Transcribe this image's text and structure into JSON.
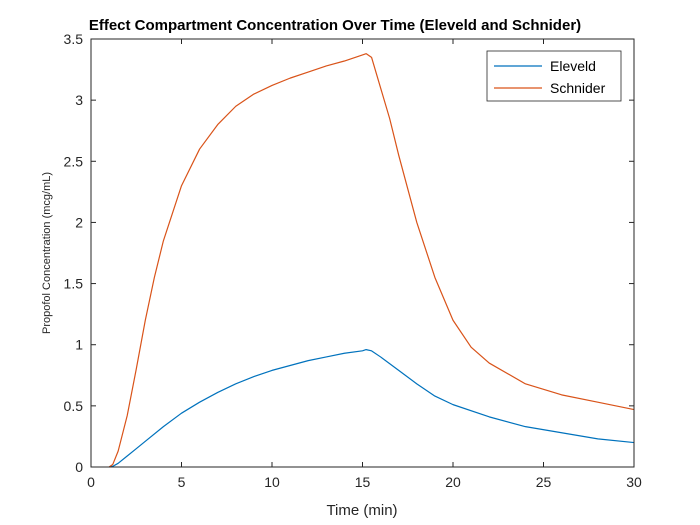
{
  "chart_data": {
    "type": "line",
    "title": "Effect Compartment Concentration Over Time (Eleveld and Schnider)",
    "xlabel": "Time (min)",
    "ylabel": "Propofol Concentration (mcg/mL)",
    "xlim": [
      0,
      30
    ],
    "ylim": [
      0,
      3.5
    ],
    "xticks": [
      0,
      5,
      10,
      15,
      20,
      25,
      30
    ],
    "yticks": [
      0,
      0.5,
      1,
      1.5,
      2,
      2.5,
      3,
      3.5
    ],
    "xtick_labels": [
      "0",
      "5",
      "10",
      "15",
      "20",
      "25",
      "30"
    ],
    "ytick_labels": [
      "0",
      "0.5",
      "1",
      "1.5",
      "2",
      "2.5",
      "3",
      "3.5"
    ],
    "grid": false,
    "legend_position": "top-right",
    "series": [
      {
        "name": "Eleveld",
        "color": "#0072BD",
        "x": [
          1,
          1.2,
          1.5,
          2,
          2.5,
          3,
          4,
          5,
          6,
          7,
          8,
          9,
          10,
          11,
          12,
          13,
          14,
          15,
          15.2,
          15.5,
          16,
          17,
          18,
          19,
          20,
          22,
          24,
          26,
          28,
          30
        ],
        "y": [
          0,
          0.005,
          0.03,
          0.09,
          0.15,
          0.21,
          0.33,
          0.44,
          0.53,
          0.61,
          0.68,
          0.74,
          0.79,
          0.83,
          0.87,
          0.9,
          0.93,
          0.95,
          0.96,
          0.95,
          0.9,
          0.79,
          0.68,
          0.58,
          0.51,
          0.41,
          0.33,
          0.28,
          0.23,
          0.2
        ]
      },
      {
        "name": "Schnider",
        "color": "#D95319",
        "x": [
          1,
          1.2,
          1.5,
          2,
          2.5,
          3,
          3.5,
          4,
          5,
          6,
          7,
          8,
          9,
          10,
          11,
          12,
          13,
          14,
          15,
          15.2,
          15.5,
          16,
          16.5,
          17,
          18,
          19,
          20,
          21,
          22,
          24,
          26,
          28,
          30
        ],
        "y": [
          0,
          0.02,
          0.13,
          0.42,
          0.8,
          1.2,
          1.55,
          1.85,
          2.3,
          2.6,
          2.8,
          2.95,
          3.05,
          3.12,
          3.18,
          3.23,
          3.28,
          3.32,
          3.37,
          3.38,
          3.35,
          3.1,
          2.85,
          2.55,
          2.0,
          1.55,
          1.2,
          0.98,
          0.85,
          0.68,
          0.59,
          0.53,
          0.47
        ]
      }
    ]
  }
}
